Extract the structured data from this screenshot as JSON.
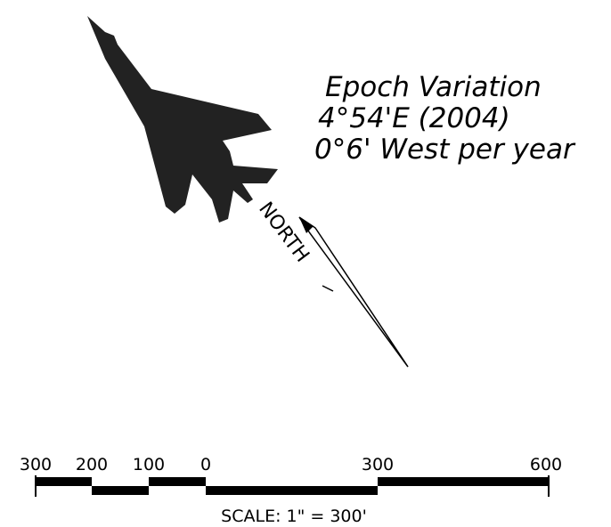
{
  "annotation": {
    "lines": [
      "Epoch Variation",
      "4°54'E (2004)",
      "0°6' West per year"
    ]
  },
  "north_label": "NORTH",
  "scale": {
    "labels": [
      "300",
      "200",
      "100",
      "0",
      "300",
      "600"
    ],
    "caption": "SCALE: 1\" = 300'"
  }
}
